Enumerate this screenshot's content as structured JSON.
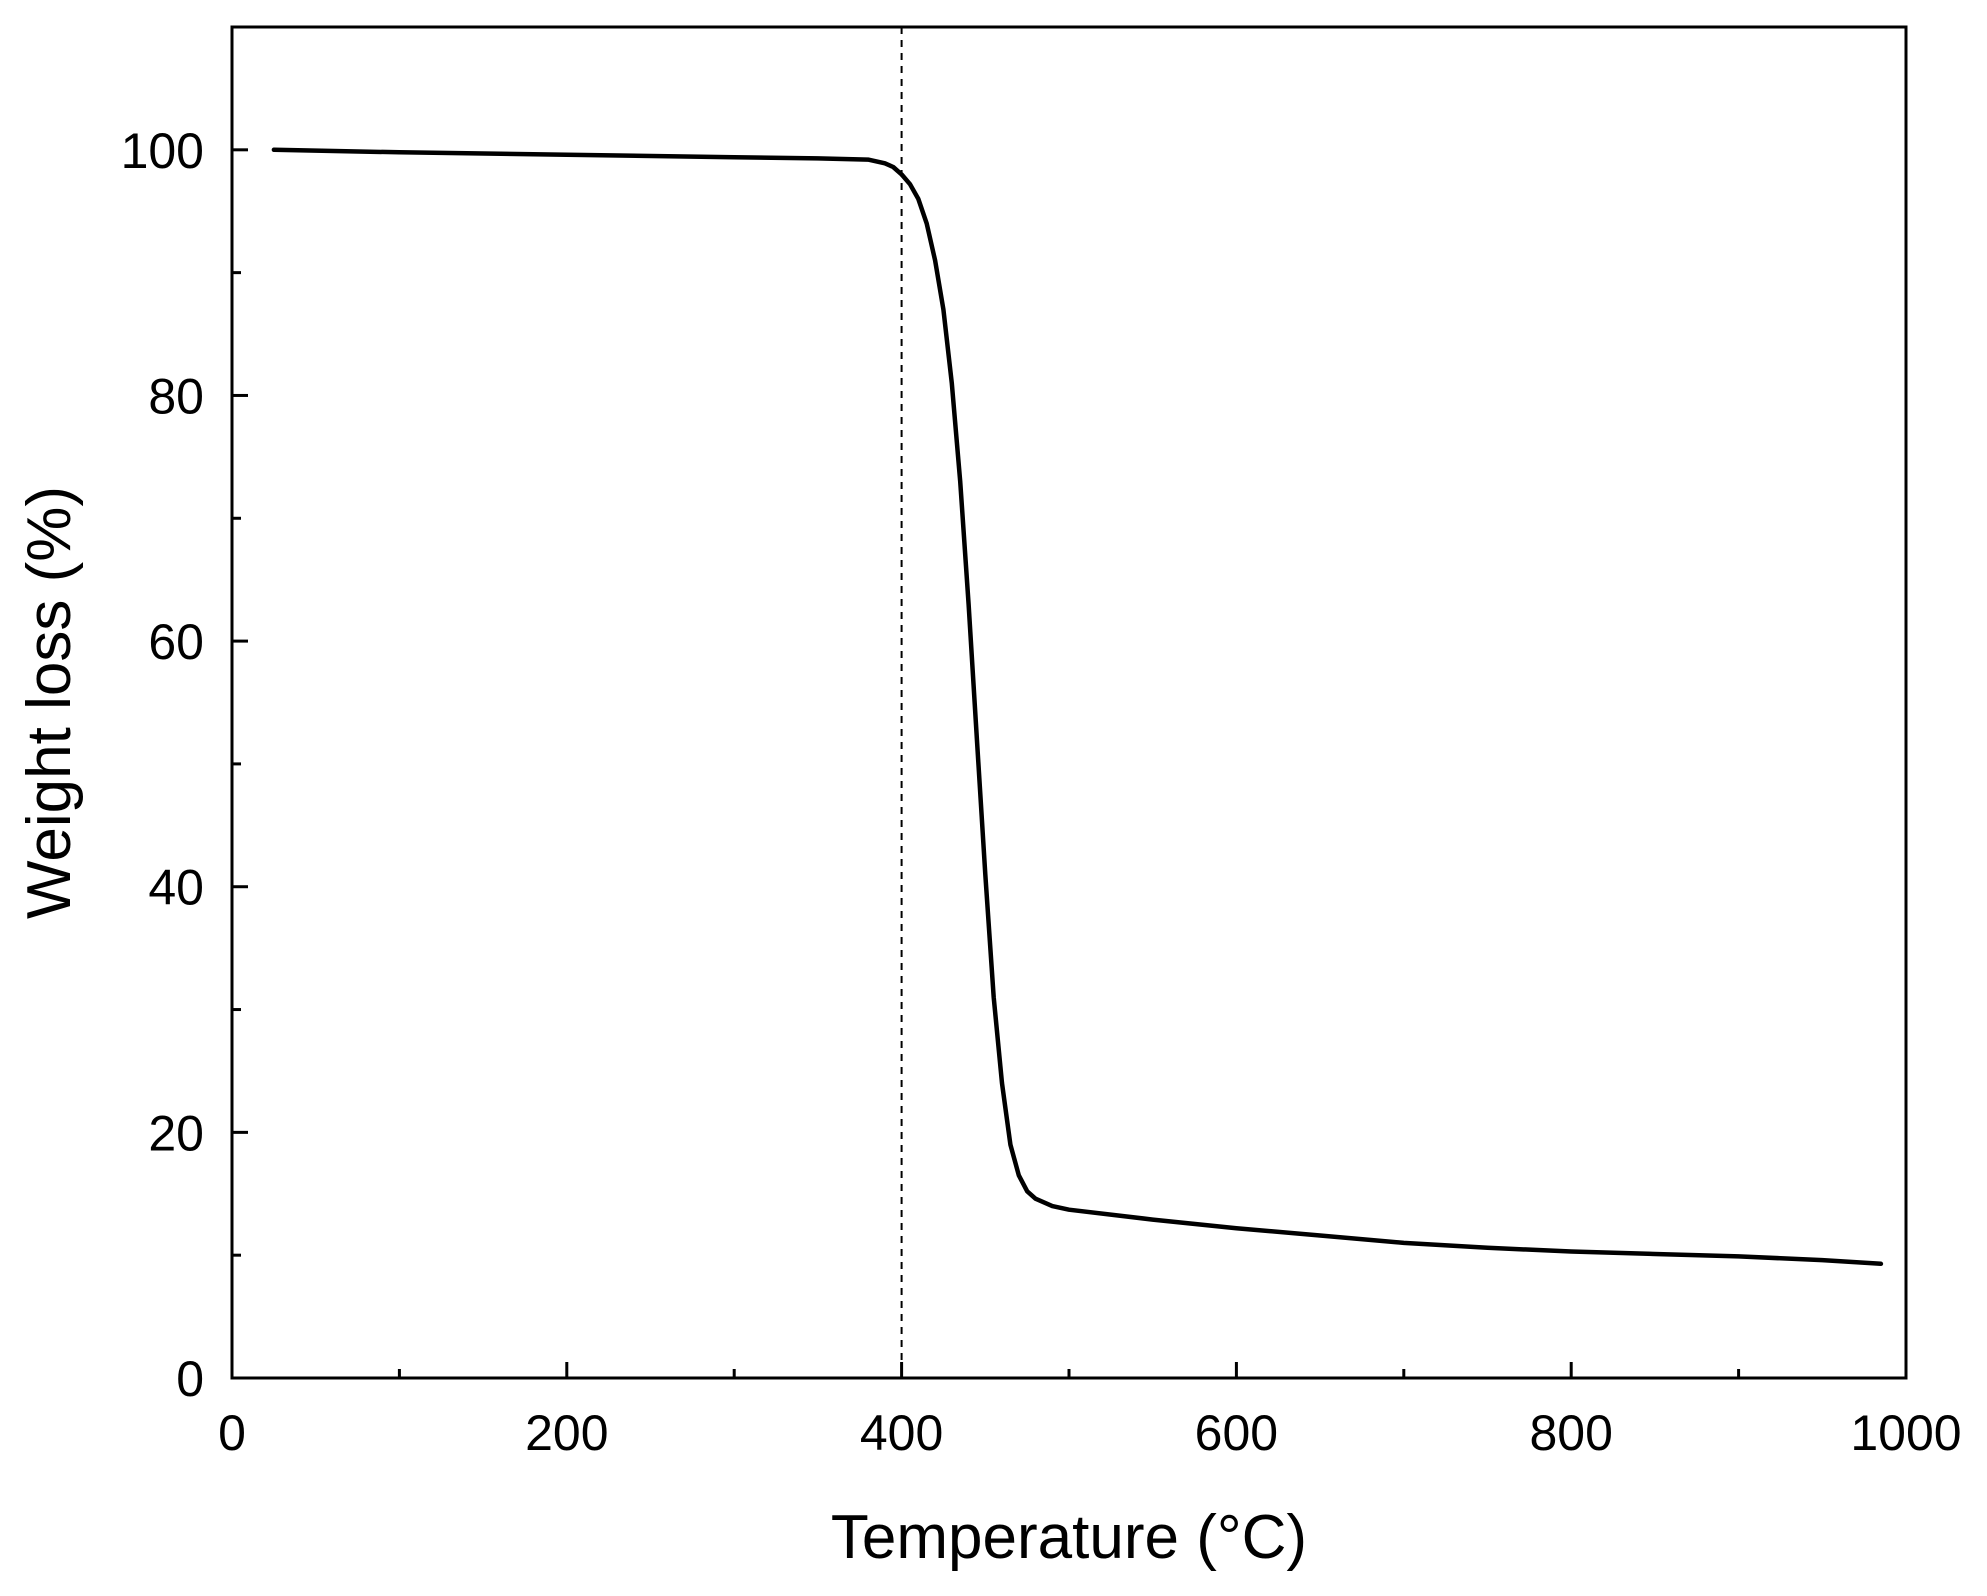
{
  "chart_data": {
    "type": "line",
    "title": "",
    "xlabel": "Temperature (°C)",
    "ylabel": "Weight loss (%)",
    "xlim": [
      0,
      1000
    ],
    "ylim": [
      0,
      110
    ],
    "x_ticks": [
      0,
      200,
      400,
      600,
      800,
      1000
    ],
    "y_ticks": [
      0,
      20,
      40,
      60,
      80,
      100
    ],
    "x_tick_labels": [
      "0",
      "200",
      "400",
      "600",
      "800",
      "1000"
    ],
    "y_tick_labels": [
      "0",
      "20",
      "40",
      "60",
      "80",
      "100"
    ],
    "x_minor_step": 100,
    "y_minor_step": 10,
    "grid": false,
    "legend": "none",
    "line_color": "#000000",
    "reference_line": {
      "x": 400,
      "style": "dashed"
    },
    "series": [
      {
        "x": [
          25,
          100,
          200,
          300,
          350,
          380,
          390,
          395,
          400,
          405,
          410,
          415,
          420,
          425,
          430,
          435,
          440,
          445,
          450,
          455,
          460,
          465,
          470,
          475,
          480,
          490,
          500,
          550,
          600,
          650,
          700,
          750,
          800,
          850,
          900,
          950,
          985
        ],
        "y": [
          100,
          99.8,
          99.6,
          99.4,
          99.3,
          99.2,
          98.9,
          98.6,
          98.0,
          97.2,
          96.0,
          94.0,
          91.0,
          87.0,
          81.0,
          73.0,
          63.0,
          52.0,
          41.0,
          31.0,
          24.0,
          19.0,
          16.5,
          15.2,
          14.6,
          14.0,
          13.7,
          12.9,
          12.2,
          11.6,
          11.0,
          10.6,
          10.3,
          10.1,
          9.9,
          9.6,
          9.3
        ]
      }
    ]
  }
}
